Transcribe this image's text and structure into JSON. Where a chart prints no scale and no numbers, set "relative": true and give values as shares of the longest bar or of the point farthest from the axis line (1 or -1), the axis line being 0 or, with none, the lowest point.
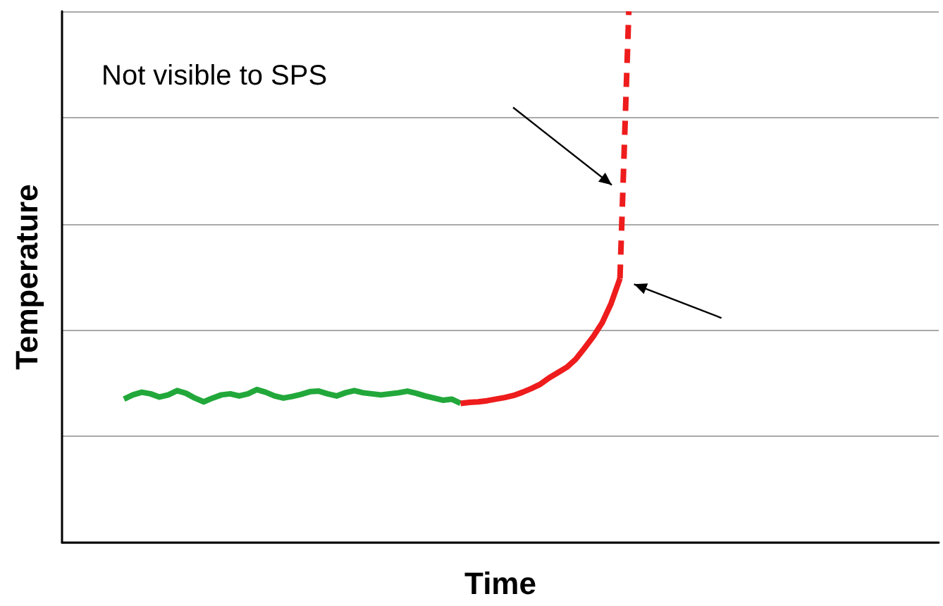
{
  "chart_data": {
    "type": "line",
    "relative": true,
    "xlabel": "Time",
    "ylabel": "Temperature",
    "grid": "y",
    "marker": "none",
    "annotations": [
      "Not visible to SPS"
    ],
    "categories": [
      null,
      null,
      null,
      null,
      null,
      null,
      null,
      null,
      null,
      null,
      null,
      null,
      null,
      null,
      null,
      null,
      null,
      null,
      null,
      null,
      null,
      null,
      null,
      null,
      null,
      null,
      null,
      null,
      null,
      null,
      null,
      null,
      null,
      null,
      null,
      null,
      null,
      null,
      null,
      null,
      null,
      null,
      null,
      null,
      null,
      null,
      null,
      null,
      null,
      null,
      null,
      null,
      null,
      null,
      null,
      null,
      null,
      null,
      null,
      null,
      null,
      null,
      null,
      null,
      null,
      null,
      null,
      null,
      null,
      null,
      null,
      null,
      null,
      null,
      null,
      null,
      null,
      null,
      null,
      null,
      null,
      null,
      null,
      null,
      null,
      null,
      null,
      null,
      null,
      null,
      null,
      null,
      null,
      null,
      null,
      null,
      null,
      null,
      null,
      null
    ],
    "series": [
      {
        "color": "#22a83a",
        "line_style": "solid",
        "values": [
          null,
          null,
          null,
          null,
          null,
          null,
          null,
          0.27,
          0.278,
          0.283,
          0.28,
          0.274,
          0.278,
          0.286,
          0.281,
          0.272,
          0.265,
          0.272,
          0.278,
          0.28,
          0.276,
          0.28,
          0.288,
          0.283,
          0.276,
          0.272,
          0.275,
          0.279,
          0.284,
          0.285,
          0.28,
          0.276,
          0.282,
          0.286,
          0.282,
          0.28,
          0.278,
          0.28,
          0.282,
          0.285,
          0.281,
          0.276,
          0.272,
          0.268,
          0.27,
          0.262,
          null,
          null,
          null,
          null,
          null,
          null,
          null,
          null,
          null,
          null,
          null,
          null,
          null,
          null,
          null,
          null,
          null,
          null,
          null,
          null,
          null,
          null,
          null,
          null,
          null,
          null,
          null,
          null,
          null,
          null,
          null,
          null,
          null,
          null,
          null,
          null,
          null,
          null,
          null,
          null,
          null,
          null,
          null,
          null,
          null,
          null,
          null,
          null,
          null,
          null,
          null,
          null,
          null,
          null
        ]
      },
      {
        "color": "#ee1c1c",
        "line_style": "solid",
        "values": [
          null,
          null,
          null,
          null,
          null,
          null,
          null,
          null,
          null,
          null,
          null,
          null,
          null,
          null,
          null,
          null,
          null,
          null,
          null,
          null,
          null,
          null,
          null,
          null,
          null,
          null,
          null,
          null,
          null,
          null,
          null,
          null,
          null,
          null,
          null,
          null,
          null,
          null,
          null,
          null,
          null,
          null,
          null,
          null,
          null,
          0.262,
          0.264,
          0.265,
          0.267,
          0.27,
          0.273,
          0.277,
          0.283,
          0.29,
          0.298,
          0.31,
          0.32,
          0.33,
          0.345,
          0.366,
          0.388,
          0.414,
          0.45,
          0.497,
          null,
          null,
          null,
          null,
          null,
          null,
          null,
          null,
          null,
          null,
          null,
          null,
          null,
          null,
          null,
          null,
          null,
          null,
          null,
          null,
          null,
          null,
          null,
          null,
          null,
          null,
          null,
          null,
          null,
          null,
          null,
          null,
          null,
          null,
          null,
          null
        ]
      },
      {
        "color": "#ee1c1c",
        "line_style": "dashed",
        "values": [
          null,
          null,
          null,
          null,
          null,
          null,
          null,
          null,
          null,
          null,
          null,
          null,
          null,
          null,
          null,
          null,
          null,
          null,
          null,
          null,
          null,
          null,
          null,
          null,
          null,
          null,
          null,
          null,
          null,
          null,
          null,
          null,
          null,
          null,
          null,
          null,
          null,
          null,
          null,
          null,
          null,
          null,
          null,
          null,
          null,
          null,
          null,
          null,
          null,
          null,
          null,
          null,
          null,
          null,
          null,
          null,
          null,
          null,
          null,
          null,
          null,
          null,
          null,
          0.497,
          1,
          null,
          null,
          null,
          null,
          null,
          null,
          null,
          null,
          null,
          null,
          null,
          null,
          null,
          null,
          null,
          null,
          null,
          null,
          null,
          null,
          null,
          null,
          null,
          null,
          null,
          null,
          null,
          null,
          null,
          null,
          null,
          null,
          null,
          null,
          null
        ]
      }
    ]
  }
}
